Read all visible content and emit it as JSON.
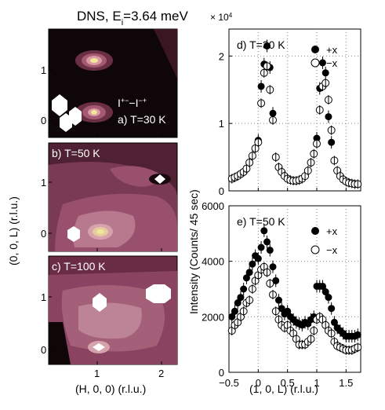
{
  "figure_title": {
    "prefix": "DNS, E",
    "subscript": "i",
    "suffix": "=3.64 meV"
  },
  "map_panels": {
    "xlabel": "(H, 0, 0) (r.l.u.)",
    "ylabel": "(0, 0, L) (r.l.u.)",
    "x_ticks": [
      "1",
      "2"
    ],
    "y_ticks": [
      "0",
      "1"
    ],
    "annotation_top": "I",
    "annotation_sup1": "+−",
    "annotation_mid": "−I",
    "annotation_sup2": "−+",
    "panels": [
      {
        "label": "a) T=30 K"
      },
      {
        "label": "b) T=50 K"
      },
      {
        "label": "c) T=100 K"
      }
    ]
  },
  "chart_data": [
    {
      "type": "scatter",
      "title": "d) T=30 K",
      "xlabel": "(1, 0, L) (r.l.u.)",
      "ylabel": "Intensity (Counts/ 45 sec)",
      "scale_label": "× 10",
      "scale_exp": "4",
      "xlim": [
        -0.5,
        1.75
      ],
      "ylim": [
        0,
        24000
      ],
      "y_ticks": [
        0,
        10000,
        20000
      ],
      "y_tick_labels": [
        "0",
        "1",
        "2"
      ],
      "legend": {
        "position": "top-right",
        "entries": [
          "+x",
          "−x"
        ]
      },
      "series": [
        {
          "name": "+x",
          "marker": "filled",
          "x": [
            0.0,
            0.05,
            0.1,
            0.15,
            0.2,
            0.25,
            1.0,
            1.05,
            1.1,
            1.15,
            1.2,
            1.25
          ],
          "y": [
            7500,
            15500,
            18800,
            21500,
            18300,
            11500,
            7800,
            15200,
            19000,
            17500,
            11000,
            7200
          ]
        },
        {
          "name": "−x",
          "marker": "open",
          "x": [
            -0.45,
            -0.4,
            -0.35,
            -0.3,
            -0.25,
            -0.2,
            -0.15,
            -0.1,
            -0.05,
            0.0,
            0.05,
            0.1,
            0.15,
            0.2,
            0.25,
            0.3,
            0.35,
            0.4,
            0.45,
            0.5,
            0.55,
            0.6,
            0.65,
            0.7,
            0.75,
            0.8,
            0.85,
            0.9,
            0.95,
            1.0,
            1.05,
            1.1,
            1.15,
            1.2,
            1.25,
            1.3,
            1.35,
            1.4,
            1.45,
            1.5,
            1.55,
            1.6,
            1.65,
            1.7
          ],
          "y": [
            1800,
            2000,
            2200,
            2500,
            2800,
            3300,
            4200,
            5200,
            6300,
            7200,
            13000,
            17500,
            18500,
            15000,
            10500,
            5000,
            3500,
            2800,
            2200,
            1800,
            1600,
            1500,
            1500,
            1600,
            1800,
            2200,
            3000,
            4200,
            5500,
            7000,
            12000,
            15500,
            16000,
            13500,
            9000,
            4500,
            3000,
            2200,
            1700,
            1400,
            1200,
            1100,
            1000,
            1000
          ]
        }
      ]
    },
    {
      "type": "scatter",
      "title": "e) T=50 K",
      "xlabel": "(1, 0, L) (r.l.u.)",
      "ylabel": "Intensity (Counts/ 45 sec)",
      "xlim": [
        -0.5,
        1.75
      ],
      "ylim": [
        0,
        6000
      ],
      "x_ticks": [
        -0.5,
        0,
        0.5,
        1,
        1.5
      ],
      "x_tick_labels": [
        "−0.5",
        "0",
        "0.5",
        "1",
        "1.5"
      ],
      "y_ticks": [
        0,
        2000,
        4000,
        6000
      ],
      "y_tick_labels": [
        "0",
        "2000",
        "4000",
        "6000"
      ],
      "legend": {
        "position": "top-right",
        "entries": [
          "+x",
          "−x"
        ]
      },
      "series": [
        {
          "name": "+x",
          "marker": "filled",
          "x": [
            -0.45,
            -0.4,
            -0.35,
            -0.3,
            -0.25,
            -0.2,
            -0.15,
            -0.1,
            -0.05,
            0.0,
            0.05,
            0.1,
            0.15,
            0.2,
            0.25,
            0.3,
            0.35,
            0.4,
            0.45,
            0.5,
            0.55,
            0.6,
            0.65,
            0.7,
            0.75,
            0.8,
            0.85,
            0.9,
            0.95,
            1.0,
            1.05,
            1.1,
            1.15,
            1.2,
            1.25,
            1.3,
            1.35,
            1.4,
            1.45,
            1.5,
            1.55,
            1.6,
            1.65,
            1.7
          ],
          "y": [
            2000,
            2200,
            2500,
            2700,
            3000,
            3400,
            3600,
            3900,
            4200,
            4100,
            4500,
            5100,
            4700,
            4400,
            3800,
            3300,
            2600,
            2300,
            2100,
            2200,
            2000,
            1900,
            1800,
            1750,
            1700,
            1800,
            1750,
            1900,
            2000,
            3100,
            3100,
            3100,
            2900,
            2700,
            2300,
            1800,
            1600,
            1500,
            1400,
            1300,
            1300,
            1300,
            1300,
            1350
          ]
        },
        {
          "name": "−x",
          "marker": "open",
          "x": [
            -0.45,
            -0.4,
            -0.35,
            -0.3,
            -0.25,
            -0.2,
            -0.15,
            -0.1,
            -0.05,
            0.0,
            0.05,
            0.1,
            0.15,
            0.2,
            0.25,
            0.3,
            0.35,
            0.4,
            0.45,
            0.5,
            0.55,
            0.6,
            0.65,
            0.7,
            0.75,
            0.8,
            0.85,
            0.9,
            0.95,
            1.0,
            1.05,
            1.1,
            1.15,
            1.2,
            1.25,
            1.3,
            1.35,
            1.4,
            1.45,
            1.5,
            1.55,
            1.6,
            1.65,
            1.7
          ],
          "y": [
            1500,
            1700,
            1800,
            2000,
            2200,
            2500,
            2600,
            3000,
            3300,
            3500,
            3700,
            3800,
            3600,
            3200,
            2800,
            2200,
            1900,
            1700,
            1600,
            1700,
            1500,
            1400,
            1200,
            1000,
            1000,
            1000,
            1100,
            1200,
            1500,
            1900,
            2000,
            1900,
            1700,
            1500,
            1400,
            1100,
            950,
            900,
            850,
            800,
            800,
            800,
            850,
            900
          ]
        }
      ]
    }
  ]
}
